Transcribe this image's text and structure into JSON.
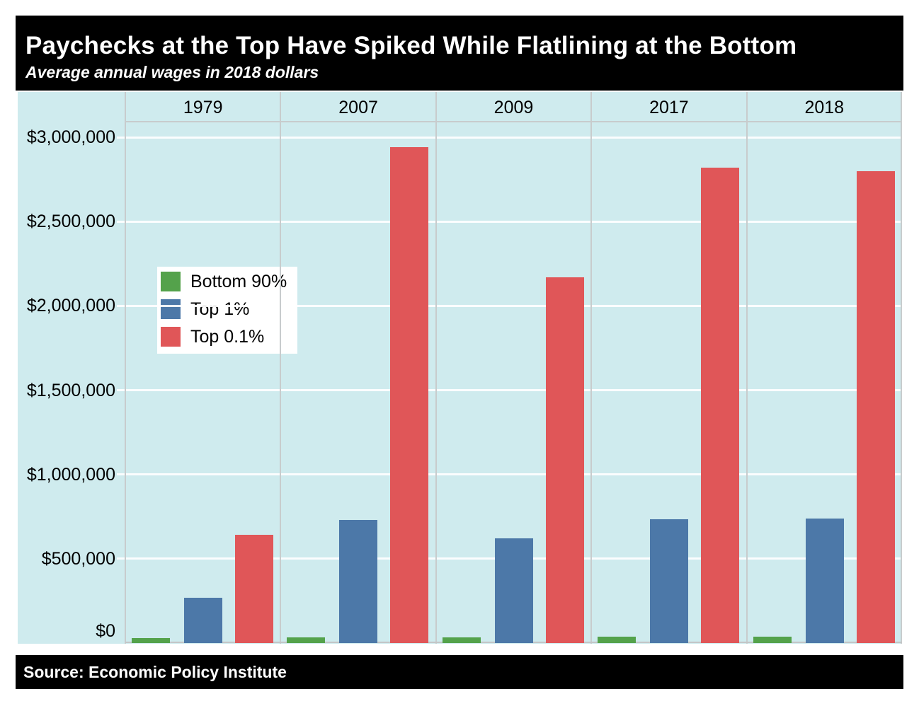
{
  "header": {
    "title": "Paychecks at the Top Have Spiked While Flatlining at the Bottom",
    "subtitle": "Average annual wages in 2018 dollars"
  },
  "footer": {
    "source": "Source: Economic Policy Institute"
  },
  "colors": {
    "page_bg": "#ffffff",
    "banner_bg": "#000000",
    "banner_text": "#ffffff",
    "plot_bg": "#cfebee",
    "gridline": "#ffffff",
    "panel_border": "#c8cccd",
    "bottom_90": "#54a24b",
    "top_1": "#4c78a8",
    "top_0_1": "#e05658"
  },
  "chart_data": {
    "type": "bar",
    "title": "Paychecks at the Top Have Spiked While Flatlining at the Bottom",
    "subtitle": "Average annual wages in 2018 dollars",
    "categories": [
      "1979",
      "2007",
      "2009",
      "2017",
      "2018"
    ],
    "series": [
      {
        "name": "Bottom 90%",
        "color": "#54a24b",
        "values": [
          31000,
          35000,
          35000,
          37000,
          37600
        ]
      },
      {
        "name": "Top 1%",
        "color": "#4c78a8",
        "values": [
          270000,
          730000,
          620000,
          735000,
          738000
        ]
      },
      {
        "name": "Top 0.1%",
        "color": "#e05658",
        "values": [
          640000,
          2940000,
          2170000,
          2820000,
          2800000
        ]
      }
    ],
    "xlabel": "",
    "ylabel": "",
    "ylim": [
      0,
      3000000
    ],
    "y_ticks": [
      {
        "value": 0,
        "label": "$0"
      },
      {
        "value": 500000,
        "label": "$500,000"
      },
      {
        "value": 1000000,
        "label": "$1,000,000"
      },
      {
        "value": 1500000,
        "label": "$1,500,000"
      },
      {
        "value": 2000000,
        "label": "$2,000,000"
      },
      {
        "value": 2500000,
        "label": "$2,500,000"
      },
      {
        "value": 3000000,
        "label": "$3,000,000"
      }
    ],
    "grid": true,
    "facet_by_year": true,
    "legend_position": "inside-upper-left",
    "source": "Source: Economic Policy Institute"
  }
}
